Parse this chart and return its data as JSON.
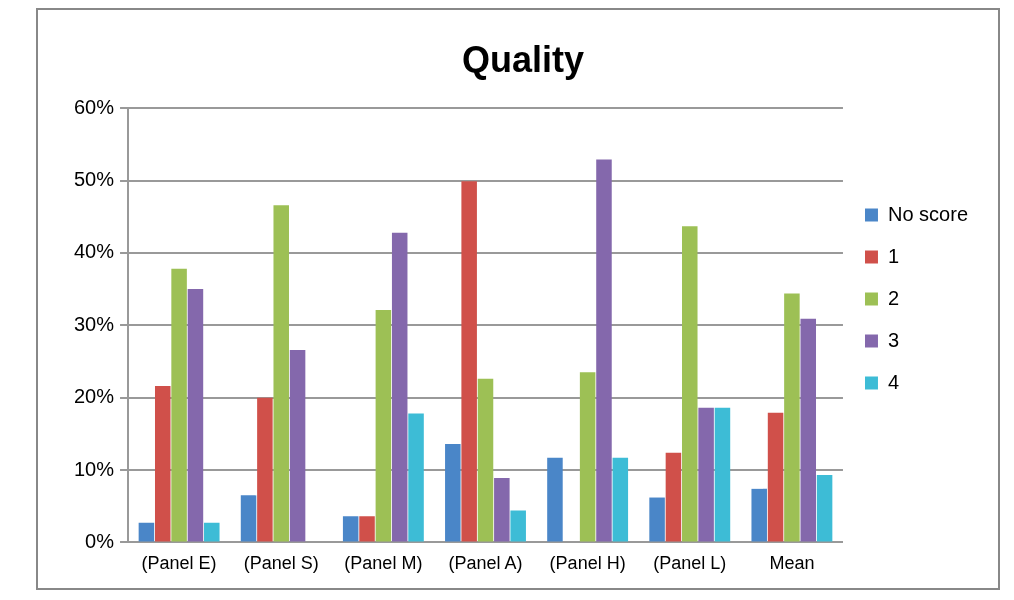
{
  "chart_data": {
    "type": "bar",
    "title": "Quality",
    "categories": [
      "(Panel E)",
      "(Panel S)",
      "(Panel M)",
      "(Panel A)",
      "(Panel H)",
      "(Panel L)",
      "Mean"
    ],
    "series": [
      {
        "name": "No score",
        "color": "#4a86c8",
        "values": [
          2.7,
          6.5,
          3.6,
          13.6,
          11.7,
          6.2,
          7.4
        ]
      },
      {
        "name": "1",
        "color": "#d0504a",
        "values": [
          21.6,
          20.0,
          3.6,
          49.9,
          0,
          12.4,
          17.9
        ]
      },
      {
        "name": "2",
        "color": "#9dc055",
        "values": [
          37.8,
          46.6,
          32.1,
          22.6,
          23.5,
          43.7,
          34.4
        ]
      },
      {
        "name": "3",
        "color": "#8468ac",
        "values": [
          35.0,
          26.6,
          42.8,
          8.9,
          52.9,
          18.6,
          30.9
        ]
      },
      {
        "name": "4",
        "color": "#3dbcd6",
        "values": [
          2.7,
          0,
          17.8,
          4.4,
          11.7,
          18.6,
          9.3
        ]
      }
    ],
    "ylim": [
      0,
      60
    ],
    "yticks": [
      {
        "value": 0,
        "label": "0%"
      },
      {
        "value": 10,
        "label": "10%"
      },
      {
        "value": 20,
        "label": "20%"
      },
      {
        "value": 30,
        "label": "30%"
      },
      {
        "value": 40,
        "label": "40%"
      },
      {
        "value": 50,
        "label": "50%"
      },
      {
        "value": 60,
        "label": "60%"
      }
    ],
    "grid": "y",
    "legend": "right"
  }
}
